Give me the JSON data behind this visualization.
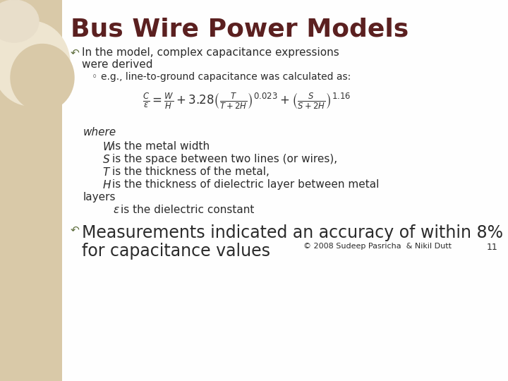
{
  "title": "Bus Wire Power Models",
  "title_color": "#5B2020",
  "title_fontsize": 26,
  "bg_color": "#FAF8F2",
  "left_panel_color": "#D9C9A8",
  "body_text_color": "#2B2B2B",
  "bullet_color": "#5B6B3A",
  "bullet1_line1": "In the model, complex capacitance expressions",
  "bullet1_line2": "were derived",
  "sub_bullet": "e.g., line-to-ground capacitance was calculated as:",
  "where_text": "where",
  "w_desc": "is the metal width",
  "s_desc": "is the space between two lines (or wires),",
  "t_desc": "is the thickness of the metal,",
  "h_desc": "is the thickness of dielectric layer between metal",
  "h_desc2": "layers",
  "eps_desc": "is the dielectric constant",
  "bullet2_line1": "Measurements indicated an accuracy of within 8%",
  "bullet2_line2": "for capacitance values",
  "footer": "© 2008 Sudeep Pasricha  & Nikil Dutt",
  "page_num": "11",
  "formula_color": "#333333",
  "circle1_color": "#EEE5D0",
  "circle2_color": "#D9C9A8",
  "circle3_color": "#E8DECA"
}
